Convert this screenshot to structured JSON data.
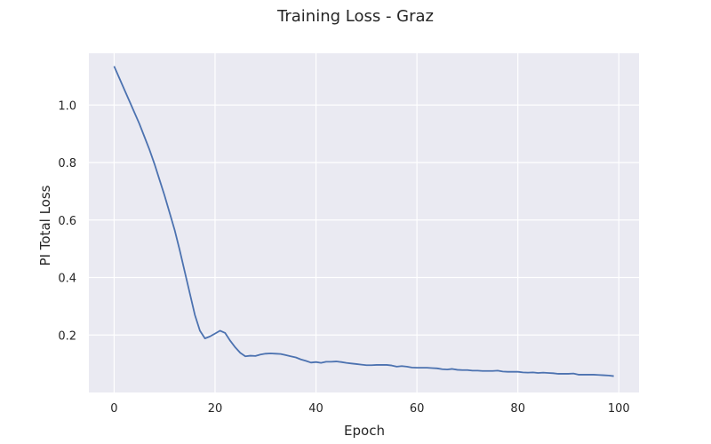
{
  "chart_data": {
    "type": "line",
    "title": "Training Loss - Graz",
    "xlabel": "Epoch",
    "ylabel": "PI Total Loss",
    "xlim": [
      -5,
      104
    ],
    "ylim": [
      0.0,
      1.18
    ],
    "xticks": [
      0,
      20,
      40,
      60,
      80,
      100
    ],
    "yticks": [
      0.2,
      0.4,
      0.6,
      0.8,
      1.0
    ],
    "ytick_labels": [
      "0.2",
      "0.4",
      "0.6",
      "0.8",
      "1.0"
    ],
    "grid": true,
    "background_color": "#eaeaf2",
    "grid_color": "#ffffff",
    "series": [
      {
        "color": "#4c72b0",
        "x": [
          0,
          1,
          2,
          3,
          4,
          5,
          6,
          7,
          8,
          9,
          10,
          11,
          12,
          13,
          14,
          15,
          16,
          17,
          18,
          19,
          20,
          21,
          22,
          23,
          24,
          25,
          26,
          27,
          28,
          29,
          30,
          31,
          32,
          33,
          34,
          35,
          36,
          37,
          38,
          39,
          40,
          41,
          42,
          43,
          44,
          45,
          46,
          47,
          48,
          49,
          50,
          51,
          52,
          53,
          54,
          55,
          56,
          57,
          58,
          59,
          60,
          61,
          62,
          63,
          64,
          65,
          66,
          67,
          68,
          69,
          70,
          71,
          72,
          73,
          74,
          75,
          76,
          77,
          78,
          79,
          80,
          81,
          82,
          83,
          84,
          85,
          86,
          87,
          88,
          89,
          90,
          91,
          92,
          93,
          94,
          95,
          96,
          97,
          98,
          99
        ],
        "y": [
          1.135,
          1.095,
          1.055,
          1.015,
          0.975,
          0.935,
          0.89,
          0.845,
          0.795,
          0.74,
          0.685,
          0.625,
          0.565,
          0.495,
          0.42,
          0.345,
          0.27,
          0.215,
          0.188,
          0.195,
          0.205,
          0.215,
          0.207,
          0.18,
          0.157,
          0.138,
          0.126,
          0.128,
          0.127,
          0.132,
          0.135,
          0.136,
          0.135,
          0.134,
          0.13,
          0.126,
          0.122,
          0.115,
          0.11,
          0.104,
          0.106,
          0.103,
          0.107,
          0.107,
          0.108,
          0.106,
          0.103,
          0.101,
          0.099,
          0.097,
          0.095,
          0.095,
          0.096,
          0.096,
          0.096,
          0.094,
          0.09,
          0.092,
          0.09,
          0.087,
          0.086,
          0.086,
          0.086,
          0.085,
          0.084,
          0.081,
          0.08,
          0.082,
          0.079,
          0.078,
          0.078,
          0.076,
          0.076,
          0.075,
          0.075,
          0.075,
          0.076,
          0.073,
          0.072,
          0.072,
          0.072,
          0.07,
          0.069,
          0.07,
          0.068,
          0.069,
          0.068,
          0.067,
          0.065,
          0.065,
          0.065,
          0.066,
          0.062,
          0.062,
          0.062,
          0.062,
          0.061,
          0.06,
          0.059,
          0.057
        ]
      }
    ]
  }
}
